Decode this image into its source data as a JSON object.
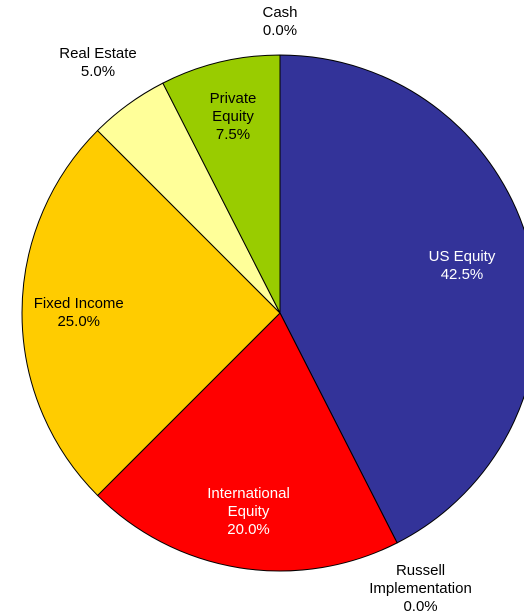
{
  "chart_data": {
    "type": "pie",
    "categories": [
      "US Equity",
      "Russell Implementation",
      "International Equity",
      "Fixed Income",
      "Real Estate",
      "Private Equity",
      "Cash"
    ],
    "values": [
      42.5,
      0.0,
      20.0,
      25.0,
      5.0,
      7.5,
      0.0
    ],
    "value_labels": [
      "42.5%",
      "0.0%",
      "20.0%",
      "25.0%",
      "5.0%",
      "7.5%",
      "0.0%"
    ],
    "colors": [
      "#333399",
      "#6666cc",
      "#ff0000",
      "#ffcc00",
      "#ffff99",
      "#99cc00",
      "#00cccc"
    ]
  }
}
